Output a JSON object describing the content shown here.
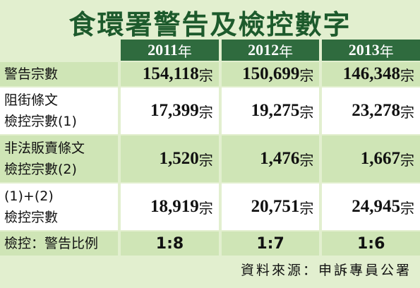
{
  "title": "食環署警告及檢控數字",
  "table": {
    "header": [
      {
        "year": "2011",
        "unit": "年"
      },
      {
        "year": "2012",
        "unit": "年"
      },
      {
        "year": "2013",
        "unit": "年"
      }
    ],
    "rows": [
      {
        "label": [
          "警告宗數"
        ],
        "cells": [
          {
            "number": "154,118",
            "unit": "宗"
          },
          {
            "number": "150,699",
            "unit": "宗"
          },
          {
            "number": "146,348",
            "unit": "宗"
          }
        ]
      },
      {
        "label": [
          "阻街條文",
          "檢控宗數(1)"
        ],
        "cells": [
          {
            "number": "17,399",
            "unit": "宗"
          },
          {
            "number": "19,275",
            "unit": "宗"
          },
          {
            "number": "23,278",
            "unit": "宗"
          }
        ]
      },
      {
        "label": [
          "非法販賣條文",
          "檢控宗數(2)"
        ],
        "cells": [
          {
            "number": "1,520",
            "unit": "宗"
          },
          {
            "number": "1,476",
            "unit": "宗"
          },
          {
            "number": "1,667",
            "unit": "宗"
          }
        ]
      },
      {
        "label": [
          "(1)+(2)",
          "檢控宗數"
        ],
        "cells": [
          {
            "number": "18,919",
            "unit": "宗"
          },
          {
            "number": "20,751",
            "unit": "宗"
          },
          {
            "number": "24,945",
            "unit": "宗"
          }
        ]
      },
      {
        "label": [
          "檢控：警告比例"
        ],
        "cells": [
          {
            "number": "1:8"
          },
          {
            "number": "1:7"
          },
          {
            "number": "1:6"
          }
        ]
      }
    ]
  },
  "source": "資料來源：申訴專員公署"
}
